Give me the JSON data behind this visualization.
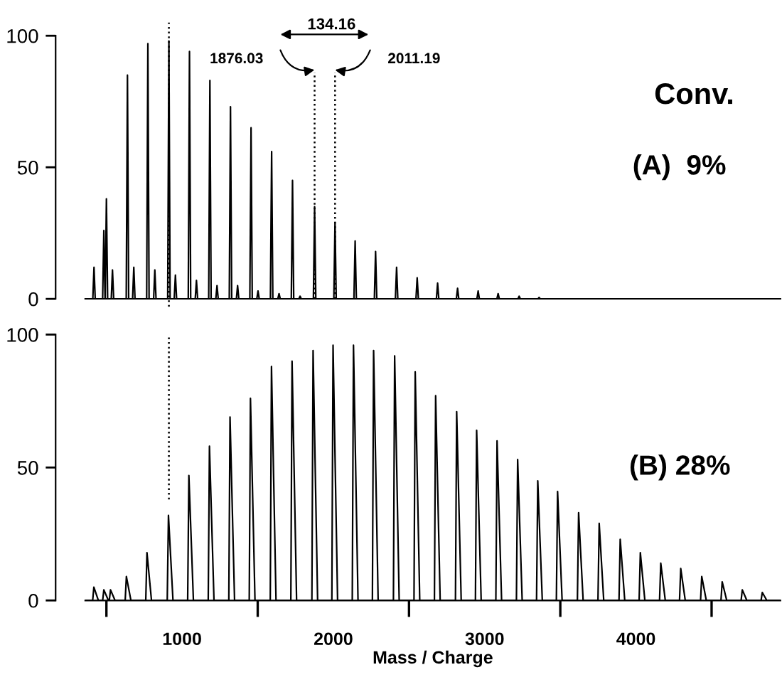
{
  "chart_data": [
    {
      "type": "line",
      "tick_labels": "y",
      "xlim": [
        360,
        4955
      ],
      "ylim": [
        0,
        100
      ],
      "yticks": [
        0,
        50,
        100
      ],
      "series": [
        {
          "color": "#000000",
          "x": [
            360,
            410,
            418,
            426,
            475,
            483,
            491,
            492,
            500,
            508,
            532,
            540,
            548,
            631,
            639,
            647,
            673,
            681,
            689,
            766,
            774,
            782,
            812,
            820,
            828,
            905,
            913,
            921,
            948,
            956,
            964,
            1041,
            1049,
            1057,
            1087,
            1095,
            1103,
            1176,
            1184,
            1192,
            1223,
            1231,
            1239,
            1312,
            1320,
            1328,
            1359,
            1367,
            1375,
            1448,
            1456,
            1464,
            1494,
            1502,
            1510,
            1584,
            1592,
            1600,
            1633,
            1641,
            1649,
            1722,
            1730,
            1738,
            1772,
            1780,
            1788,
            1868,
            1876,
            1884,
            2003,
            2011,
            2019,
            2136,
            2144,
            2152,
            2271,
            2279,
            2287,
            2410,
            2418,
            2426,
            2546,
            2554,
            2562,
            2681,
            2689,
            2697,
            2813,
            2821,
            2829,
            2949,
            2957,
            2965,
            3081,
            3089,
            3097,
            3220,
            3228,
            3236,
            3352,
            3360,
            3368,
            4955
          ],
          "values": [
            0,
            0,
            12,
            0,
            0,
            26,
            0,
            0,
            38,
            0,
            0,
            11,
            0,
            0,
            85,
            0,
            0,
            12,
            0,
            0,
            97,
            0,
            0,
            11,
            0,
            0,
            98,
            0,
            0,
            9,
            0,
            0,
            94,
            0,
            0,
            7,
            0,
            0,
            83,
            0,
            0,
            5,
            0,
            0,
            73,
            0,
            0,
            5,
            0,
            0,
            65,
            0,
            0,
            3,
            0,
            0,
            56,
            0,
            0,
            2,
            0,
            0,
            45,
            0,
            0,
            1,
            0,
            0,
            35,
            0,
            0,
            29,
            0,
            0,
            22,
            0,
            0,
            18,
            0,
            0,
            12,
            0,
            0,
            8,
            0,
            0,
            6,
            0,
            0,
            4,
            0,
            0,
            3,
            0,
            0,
            2,
            0,
            0,
            1,
            0,
            0,
            0.5,
            0,
            0
          ]
        }
      ],
      "ref_lines": [
        {
          "axis": "x",
          "value": 913,
          "line_style": "dotted",
          "color": "#000000"
        },
        {
          "axis": "x",
          "value": 1876.03,
          "line_style": "dotted",
          "color": "#000000"
        },
        {
          "axis": "x",
          "value": 2011.19,
          "line_style": "dotted",
          "color": "#000000"
        }
      ],
      "annotations": [
        "134.16",
        "1876.03",
        "2011.19",
        "Conv.",
        "(A)  9%"
      ]
    },
    {
      "type": "line",
      "xlim": [
        360,
        4955
      ],
      "ylim": [
        0,
        100
      ],
      "yticks": [
        0,
        50,
        100
      ],
      "xlabel": "Mass / Charge",
      "xticks": [
        {
          "value": 500,
          "label": null
        },
        {
          "value": 1000,
          "label": "1000"
        },
        {
          "value": 1500,
          "label": null
        },
        {
          "value": 2000,
          "label": "2000"
        },
        {
          "value": 2500,
          "label": null
        },
        {
          "value": 3000,
          "label": "3000"
        },
        {
          "value": 3500,
          "label": null
        },
        {
          "value": 4000,
          "label": "4000"
        },
        {
          "value": 4500,
          "label": null
        }
      ],
      "series": [
        {
          "color": "#000000",
          "x": [
            360,
            409,
            417,
            447,
            475,
            483,
            513,
            519,
            527,
            557,
            624,
            632,
            662,
            760,
            768,
            798,
            902,
            910,
            940,
            1037,
            1045,
            1075,
            1173,
            1181,
            1211,
            1309,
            1317,
            1347,
            1444,
            1452,
            1482,
            1583,
            1591,
            1621,
            1719,
            1727,
            1757,
            1858,
            1866,
            1896,
            1990,
            1998,
            2028,
            2125,
            2133,
            2163,
            2258,
            2266,
            2296,
            2397,
            2405,
            2435,
            2533,
            2541,
            2571,
            2668,
            2676,
            2706,
            2807,
            2815,
            2845,
            2939,
            2947,
            2977,
            3074,
            3082,
            3112,
            3210,
            3218,
            3248,
            3343,
            3351,
            3381,
            3474,
            3482,
            3512,
            3613,
            3621,
            3651,
            3749,
            3757,
            3787,
            3888,
            3896,
            3926,
            4021,
            4029,
            4059,
            4156,
            4164,
            4194,
            4288,
            4296,
            4326,
            4427,
            4435,
            4465,
            4562,
            4570,
            4600,
            4695,
            4703,
            4733,
            4827,
            4835,
            4865,
            4955
          ],
          "values": [
            0,
            0,
            5,
            0,
            0,
            4,
            0,
            0,
            4,
            0,
            0,
            9,
            0,
            0,
            18,
            0,
            0,
            32,
            0,
            0,
            47,
            0,
            0,
            58,
            0,
            0,
            69,
            0,
            0,
            76,
            0,
            0,
            88,
            0,
            0,
            90,
            0,
            0,
            94,
            0,
            0,
            96,
            0,
            0,
            96,
            0,
            0,
            94,
            0,
            0,
            92,
            0,
            0,
            86,
            0,
            0,
            77,
            0,
            0,
            71,
            0,
            0,
            64,
            0,
            0,
            60,
            0,
            0,
            53,
            0,
            0,
            45,
            0,
            0,
            41,
            0,
            0,
            33,
            0,
            0,
            29,
            0,
            0,
            23,
            0,
            0,
            18,
            0,
            0,
            14,
            0,
            0,
            12,
            0,
            0,
            9,
            0,
            0,
            7,
            0,
            0,
            4,
            0,
            0,
            3,
            0,
            0
          ]
        }
      ],
      "ref_lines": [
        {
          "axis": "x",
          "value": 913,
          "line_style": "dotted",
          "color": "#000000"
        }
      ],
      "annotations": [
        "(B) 28%"
      ]
    }
  ]
}
